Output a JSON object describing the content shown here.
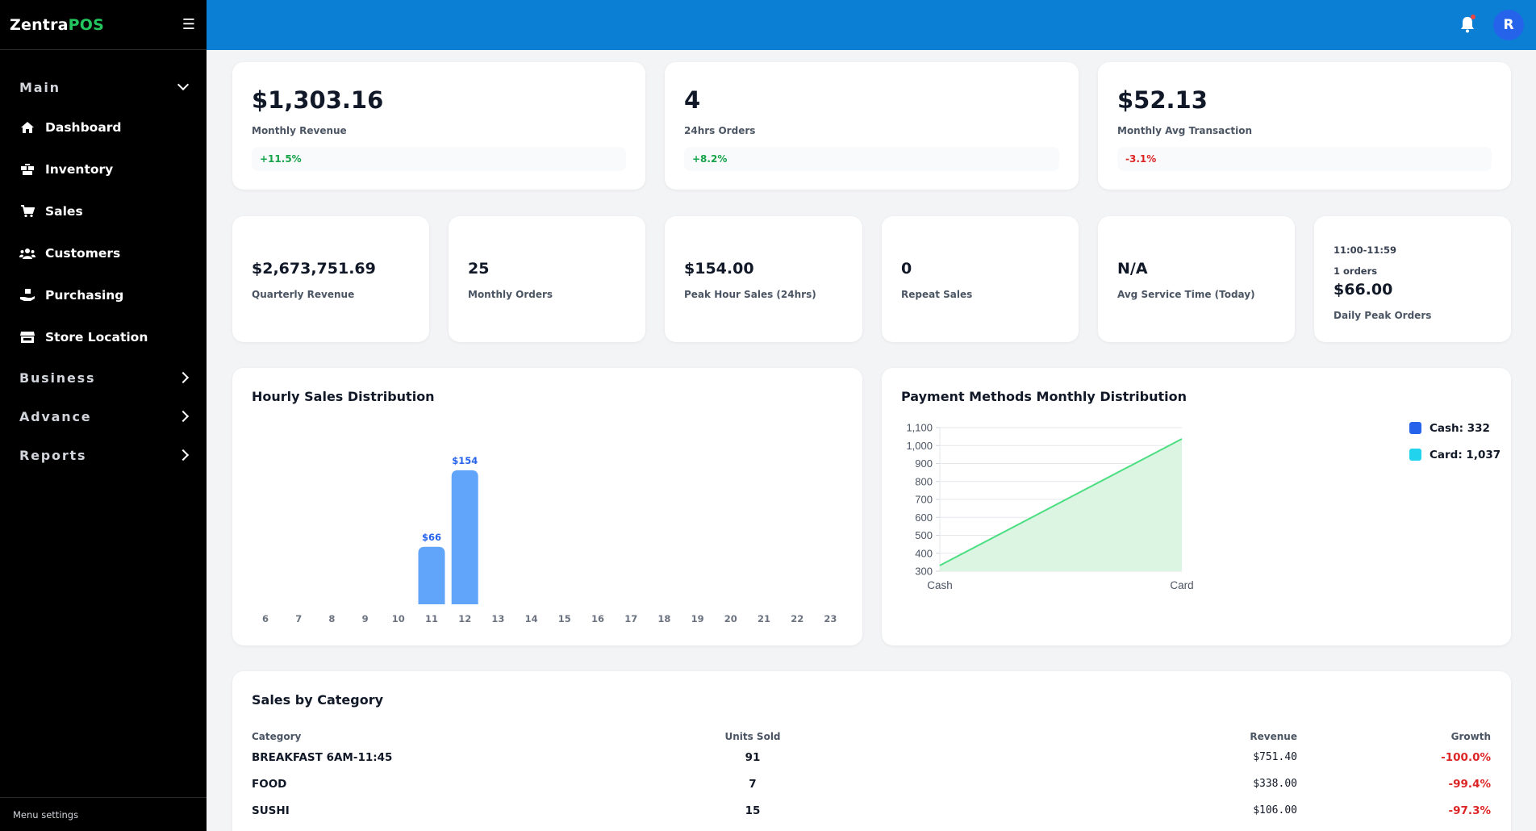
{
  "brand": {
    "name_part1": "Zentra",
    "name_part2": "POS",
    "accent": "#22c55e"
  },
  "sidebar": {
    "main_label": "Main",
    "items": [
      {
        "label": "Dashboard",
        "icon": "home-icon"
      },
      {
        "label": "Inventory",
        "icon": "boxes-icon"
      },
      {
        "label": "Sales",
        "icon": "cart-icon"
      },
      {
        "label": "Customers",
        "icon": "users-icon"
      },
      {
        "label": "Purchasing",
        "icon": "hand-holding-icon"
      },
      {
        "label": "Store Location",
        "icon": "store-icon"
      }
    ],
    "sections": [
      {
        "label": "Business"
      },
      {
        "label": "Advance"
      },
      {
        "label": "Reports"
      }
    ],
    "footer": "Menu settings"
  },
  "topbar": {
    "avatar_initial": "R",
    "color": "#0a7fd4"
  },
  "kpis_top": [
    {
      "value": "$1,303.16",
      "label": "Monthly Revenue",
      "change": "+11.5%",
      "trend": "up"
    },
    {
      "value": "4",
      "label": "24hrs Orders",
      "change": "+8.2%",
      "trend": "up"
    },
    {
      "value": "$52.13",
      "label": "Monthly Avg Transaction",
      "change": "-3.1%",
      "trend": "down"
    }
  ],
  "kpis_mid": [
    {
      "value": "$2,673,751.69",
      "label": "Quarterly Revenue"
    },
    {
      "value": "25",
      "label": "Monthly Orders"
    },
    {
      "value": "$154.00",
      "label": "Peak Hour Sales (24hrs)"
    },
    {
      "value": "0",
      "label": "Repeat Sales"
    },
    {
      "value": "N/A",
      "label": "Avg Service Time (Today)"
    }
  ],
  "peak": {
    "time": "11:00-11:59",
    "orders": "1 orders",
    "value": "$66.00",
    "label": "Daily Peak Orders"
  },
  "chart_data": [
    {
      "type": "bar",
      "title": "Hourly Sales Distribution",
      "categories": [
        "6",
        "7",
        "8",
        "9",
        "10",
        "11",
        "12",
        "13",
        "14",
        "15",
        "16",
        "17",
        "18",
        "19",
        "20",
        "21",
        "22",
        "23"
      ],
      "values": [
        0,
        0,
        0,
        0,
        0,
        66,
        154,
        0,
        0,
        0,
        0,
        0,
        0,
        0,
        0,
        0,
        0,
        0
      ],
      "data_labels": [
        "",
        "",
        "",
        "",
        "",
        "$66",
        "$154",
        "",
        "",
        "",
        "",
        "",
        "",
        "",
        "",
        "",
        "",
        ""
      ],
      "ylim": [
        0,
        165
      ],
      "color": "#60a5fa",
      "label_color": "#2563eb"
    },
    {
      "type": "area",
      "title": "Payment Methods Monthly Distribution",
      "categories": [
        "Cash",
        "Card"
      ],
      "values": [
        332,
        1037
      ],
      "ylim": [
        300,
        1100
      ],
      "yticks": [
        1100,
        1000,
        900,
        800,
        700,
        600,
        500,
        400,
        300
      ],
      "ytick_labels": [
        "1,100",
        "1,000",
        "900",
        "800",
        "700",
        "600",
        "500",
        "400",
        "300"
      ],
      "legend": [
        {
          "label": "Cash: 332",
          "color": "#2563eb"
        },
        {
          "label": "Card: 1,037",
          "color": "#22d3ee"
        }
      ],
      "legend_position": "top-right",
      "line_color": "#4ade80",
      "fill_color": "#dcf5e3",
      "grid": true
    }
  ],
  "category_table": {
    "title": "Sales by Category",
    "headers": [
      "Category",
      "Units Sold",
      "Revenue",
      "Growth"
    ],
    "rows": [
      [
        "BREAKFAST 6AM-11:45",
        "91",
        "$751.40",
        "-100.0%"
      ],
      [
        "FOOD",
        "7",
        "$338.00",
        "-99.4%"
      ],
      [
        "SUSHI",
        "15",
        "$106.00",
        "-97.3%"
      ]
    ]
  }
}
